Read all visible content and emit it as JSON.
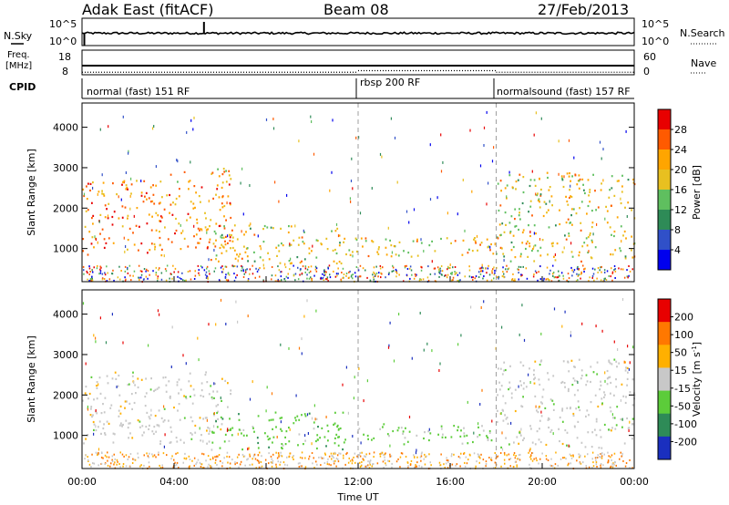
{
  "header": {
    "station": "Adak East (fitACF)",
    "beam": "Beam 08",
    "date": "27/Feb/2013"
  },
  "noise_panel": {
    "left_label": "N.Sky",
    "right_label": "N.Search",
    "left_ticks": [
      "10^5",
      "10^0"
    ],
    "right_ticks": [
      "10^5",
      "10^0"
    ]
  },
  "freq_panel": {
    "left_label_1": "Freq.",
    "left_label_2": "[MHz]",
    "left_ticks": [
      "18",
      "8"
    ],
    "right_label": "Nave",
    "right_ticks": [
      "60",
      "0"
    ]
  },
  "cpid_panel": {
    "label": "CPID",
    "segments": [
      {
        "text": "normal (fast) 151 RF",
        "start_hour": 0
      },
      {
        "text": "rbsp 200 RF",
        "start_hour": 12
      },
      {
        "text": "normalsound (fast) 157 RF",
        "start_hour": 18
      }
    ]
  },
  "time_axis": {
    "label": "Time UT",
    "tick_labels": [
      "00:00",
      "04:00",
      "08:00",
      "12:00",
      "16:00",
      "20:00",
      "00:00"
    ]
  },
  "power_panel": {
    "ylabel": "Slant Range [km]",
    "colorbar_label": "Power [dB]",
    "colorbar_ticks": [
      "28",
      "24",
      "20",
      "16",
      "12",
      "8",
      "4"
    ]
  },
  "velocity_panel": {
    "ylabel": "Slant Range [km]",
    "colorbar_label": "Velocity [m s",
    "colorbar_label_sup": "-1",
    "colorbar_label_end": "]",
    "colorbar_ticks": [
      "200",
      "100",
      "50",
      "15",
      "-15",
      "-50",
      "-100",
      "-200"
    ]
  },
  "colors": {
    "power_scale": [
      "#0000ee",
      "#3050c8",
      "#2e8b57",
      "#5fbf5f",
      "#e8c020",
      "#ffa500",
      "#ff5a00",
      "#e80000"
    ],
    "velocity_scale": [
      "#1a2fbf",
      "#2e8b57",
      "#5ccc3a",
      "#c8c8c8",
      "#ffb000",
      "#ff7800",
      "#e80000"
    ]
  },
  "chart_data": [
    {
      "type": "line",
      "title": "N.Sky / N.Search",
      "x_label": "Time UT",
      "xlim_hours": [
        0,
        24
      ],
      "description_values": {
        "sky_level_log10": 0.8,
        "spikes_hour": [
          0.1,
          5.3
        ]
      }
    },
    {
      "type": "line",
      "title": "Freq. [MHz] / Nave",
      "xlim_hours": [
        0,
        24
      ],
      "series": [
        {
          "name": "Freq.",
          "values_mhz": [
            10.3,
            10.3,
            10.3,
            10.3
          ]
        },
        {
          "name": "Nave",
          "segments": [
            {
              "start": 0,
              "end": 12,
              "value": 8
            },
            {
              "start": 12,
              "end": 18,
              "value": 16
            },
            {
              "start": 18,
              "end": 24,
              "value": 8
            }
          ]
        }
      ]
    },
    {
      "type": "heatmap",
      "title": "Power [dB]",
      "ylabel": "Slant Range [km]",
      "ylim_km": [
        180,
        4600
      ],
      "xlim_hours": [
        0,
        24
      ],
      "yticks_km": [
        1000,
        2000,
        3000,
        4000
      ],
      "regions": [
        {
          "t0": 0.0,
          "t1": 3.5,
          "r0": 850,
          "r1": 2700,
          "level": 24
        },
        {
          "t0": 3.5,
          "t1": 6.5,
          "r0": 1000,
          "r1": 3000,
          "level": 22
        },
        {
          "t0": 5.5,
          "t1": 11.5,
          "r0": 650,
          "r1": 1600,
          "level": 18
        },
        {
          "t0": 11.0,
          "t1": 18.0,
          "r0": 800,
          "r1": 1300,
          "level": 20
        },
        {
          "t0": 18.0,
          "t1": 24.0,
          "r0": 700,
          "r1": 2900,
          "level": 18
        }
      ]
    },
    {
      "type": "heatmap",
      "title": "Velocity [m s-1]",
      "ylabel": "Slant Range [km]",
      "ylim_km": [
        180,
        4600
      ],
      "xlim_hours": [
        0,
        24
      ],
      "yticks_km": [
        1000,
        2000,
        3000,
        4000
      ],
      "regions": [
        {
          "t0": 0.0,
          "t1": 6.5,
          "r0": 800,
          "r1": 2600,
          "level": 0
        },
        {
          "t0": 5.5,
          "t1": 11.5,
          "r0": 650,
          "r1": 1600,
          "level": 40
        },
        {
          "t0": 11.0,
          "t1": 18.0,
          "r0": 800,
          "r1": 1300,
          "level": 30
        },
        {
          "t0": 18.0,
          "t1": 24.0,
          "r0": 700,
          "r1": 2900,
          "level": 0
        }
      ]
    }
  ]
}
